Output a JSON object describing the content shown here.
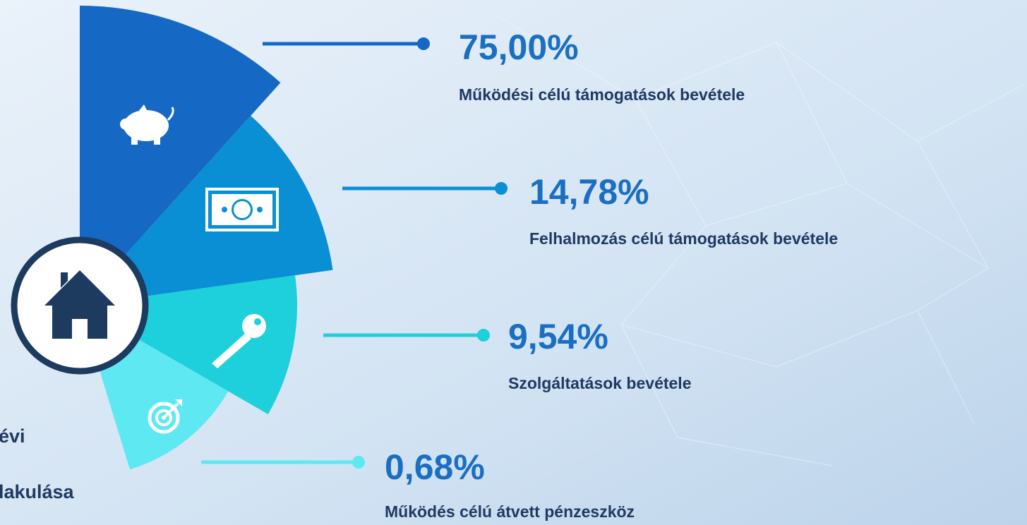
{
  "items": [
    {
      "value": "75,00%",
      "label": "Működési célú támogatások bevétele"
    },
    {
      "value": "14,78%",
      "label": "Felhalmozás célú támogatások bevétele"
    },
    {
      "value": "9,54%",
      "label": "Szolgáltatások bevétele"
    },
    {
      "value": "0,68%",
      "label": "Működés célú átvett pénzeszköz"
    }
  ],
  "title_fragments": [
    "évi",
    "lakulása"
  ]
}
